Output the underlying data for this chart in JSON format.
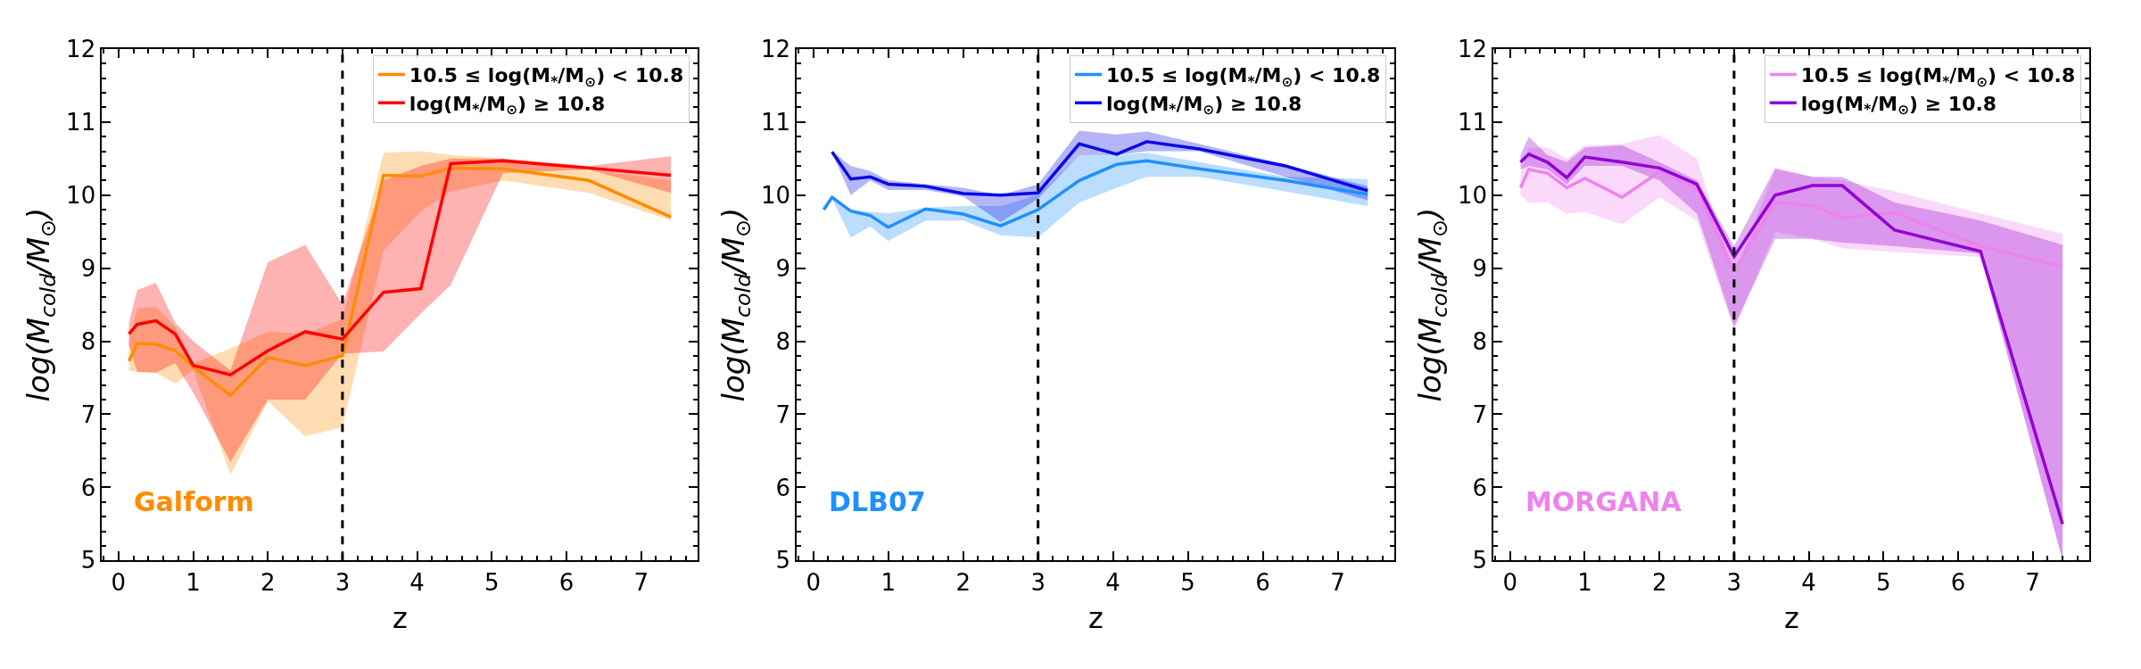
{
  "chart_data": [
    {
      "type": "line",
      "xlabel": "z",
      "ylabel": "log(M$_{cold}$/M$_{⊙}$)",
      "annotations": [
        "Galform"
      ],
      "x": [
        0.14,
        0.25,
        0.5,
        0.76,
        1.0,
        1.5,
        2.0,
        2.5,
        3.0,
        3.55,
        4.05,
        4.45,
        5.15,
        6.3,
        7.4
      ],
      "series": [
        {
          "name": "10.5 ≤ log(M$_{*}$/M$_{⊙}$) < 10.8",
          "color": "#ff8c00",
          "values": [
            7.73,
            7.97,
            7.96,
            7.87,
            7.65,
            7.26,
            7.78,
            7.67,
            7.8,
            10.27,
            10.26,
            10.37,
            10.36,
            10.2,
            9.7
          ],
          "upper": [
            8.0,
            8.45,
            8.47,
            8.2,
            7.7,
            7.9,
            8.13,
            8.1,
            8.3,
            10.58,
            10.6,
            10.55,
            10.5,
            10.35,
            10.2
          ],
          "lower": [
            7.6,
            7.58,
            7.57,
            7.42,
            7.6,
            6.17,
            7.18,
            6.7,
            6.82,
            9.24,
            9.78,
            10.05,
            10.2,
            10.03,
            9.65
          ]
        },
        {
          "name": "log(M$_{*}$/M$_{⊙}$) ≥ 10.8",
          "color": "#ff0000",
          "values": [
            8.1,
            8.23,
            8.28,
            8.1,
            7.67,
            7.54,
            7.87,
            8.13,
            8.03,
            8.67,
            8.72,
            10.43,
            10.47,
            10.37,
            10.27
          ],
          "upper": [
            8.25,
            8.7,
            8.8,
            8.25,
            8.0,
            7.6,
            9.08,
            9.32,
            8.5,
            10.2,
            10.4,
            10.5,
            10.5,
            10.4,
            10.53
          ],
          "lower": [
            7.95,
            7.58,
            7.57,
            7.7,
            7.3,
            6.35,
            7.2,
            7.2,
            7.83,
            7.86,
            8.38,
            8.77,
            10.3,
            10.35,
            10.03
          ]
        }
      ],
      "xlim": [
        -0.22,
        7.76
      ],
      "ylim": [
        5,
        12
      ],
      "xticks": [
        0,
        1,
        2,
        3,
        4,
        5,
        6,
        7
      ],
      "yticks": [
        5,
        6,
        7,
        8,
        9,
        10,
        11,
        12
      ],
      "ref_lines": [
        {
          "axis": "x",
          "value": 3,
          "label": null,
          "color": "#000000",
          "line_style": "dashed"
        }
      ],
      "legend": "top right"
    },
    {
      "type": "line",
      "xlabel": "z",
      "ylabel": "log(M$_{cold}$/M$_{⊙}$)",
      "annotations": [
        "DLB07"
      ],
      "x": [
        0.14,
        0.25,
        0.5,
        0.76,
        1.0,
        1.5,
        2.0,
        2.5,
        3.0,
        3.55,
        4.05,
        4.45,
        5.15,
        6.3,
        7.4
      ],
      "series": [
        {
          "name": "10.5 ≤ log(M$_{*}$/M$_{⊙}$) < 10.8",
          "color": "#1e90ff",
          "values": [
            9.8,
            9.97,
            9.78,
            9.72,
            9.56,
            9.81,
            9.74,
            9.58,
            9.8,
            10.2,
            10.42,
            10.47,
            10.36,
            10.2,
            10.01
          ],
          "upper": [
            9.85,
            9.97,
            9.8,
            9.77,
            9.75,
            9.83,
            9.85,
            9.85,
            10.0,
            10.55,
            10.55,
            10.58,
            10.45,
            10.25,
            10.22
          ],
          "lower": [
            9.78,
            9.95,
            9.42,
            9.57,
            9.37,
            9.65,
            9.65,
            9.45,
            9.42,
            9.9,
            10.1,
            10.25,
            10.25,
            10.05,
            9.85
          ]
        },
        {
          "name": "log(M$_{*}$/M$_{⊙}$) ≥ 10.8",
          "color": "#0a0ae6",
          "values": [
            null,
            10.59,
            10.22,
            10.25,
            10.15,
            10.12,
            10.02,
            10.0,
            10.03,
            10.7,
            10.56,
            10.73,
            10.63,
            10.4,
            10.06
          ],
          "upper": [
            null,
            10.6,
            10.4,
            10.33,
            10.2,
            10.15,
            10.1,
            10.0,
            10.15,
            10.88,
            10.83,
            10.87,
            10.7,
            10.42,
            10.12
          ],
          "lower": [
            null,
            10.58,
            10.0,
            10.2,
            10.07,
            10.07,
            9.98,
            9.63,
            9.95,
            10.55,
            10.55,
            10.6,
            10.6,
            10.25,
            9.93
          ]
        }
      ],
      "xlim": [
        -0.22,
        7.76
      ],
      "ylim": [
        5,
        12
      ],
      "xticks": [
        0,
        1,
        2,
        3,
        4,
        5,
        6,
        7
      ],
      "yticks": [
        5,
        6,
        7,
        8,
        9,
        10,
        11,
        12
      ],
      "ref_lines": [
        {
          "axis": "x",
          "value": 3,
          "label": null,
          "color": "#000000",
          "line_style": "dashed"
        }
      ],
      "legend": "top right"
    },
    {
      "type": "line",
      "xlabel": "z",
      "ylabel": "log(M$_{cold}$/M$_{⊙}$)",
      "annotations": [
        "MORGANA"
      ],
      "x": [
        0.14,
        0.25,
        0.5,
        0.76,
        1.0,
        1.5,
        2.0,
        2.5,
        3.0,
        3.55,
        4.05,
        4.45,
        5.15,
        6.3,
        7.4
      ],
      "series": [
        {
          "name": "10.5 ≤ log(M$_{*}$/M$_{⊙}$) < 10.8",
          "color": "#ee82ee",
          "values": [
            10.1,
            10.35,
            10.3,
            10.1,
            10.23,
            9.97,
            10.32,
            10.1,
            8.95,
            9.9,
            9.86,
            9.69,
            9.76,
            9.3,
            9.02
          ],
          "upper": [
            10.3,
            10.65,
            10.65,
            10.5,
            10.68,
            10.7,
            10.82,
            10.5,
            8.9,
            10.35,
            10.25,
            10.2,
            10.05,
            9.75,
            9.47
          ],
          "lower": [
            10.0,
            9.9,
            9.9,
            9.75,
            9.77,
            9.6,
            9.97,
            9.65,
            8.15,
            9.5,
            9.4,
            9.27,
            9.22,
            9.15,
            5.0
          ]
        },
        {
          "name": "log(M$_{*}$/M$_{⊙}$) ≥ 10.8",
          "color": "#9400d3",
          "values": [
            10.45,
            10.56,
            10.45,
            10.24,
            10.52,
            10.45,
            10.37,
            10.15,
            9.16,
            10.0,
            10.13,
            10.13,
            9.52,
            9.23,
            5.5
          ],
          "upper": [
            10.55,
            10.8,
            10.55,
            10.45,
            10.65,
            10.68,
            10.45,
            10.2,
            9.3,
            10.37,
            10.25,
            10.25,
            9.9,
            9.65,
            9.32
          ],
          "lower": [
            10.35,
            10.4,
            10.35,
            10.15,
            10.4,
            10.4,
            10.2,
            9.75,
            8.2,
            9.4,
            9.4,
            9.35,
            9.3,
            9.2,
            5.0
          ]
        }
      ],
      "xlim": [
        -0.22,
        7.76
      ],
      "ylim": [
        5,
        12
      ],
      "xticks": [
        0,
        1,
        2,
        3,
        4,
        5,
        6,
        7
      ],
      "yticks": [
        5,
        6,
        7,
        8,
        9,
        10,
        11,
        12
      ],
      "ref_lines": [
        {
          "axis": "x",
          "value": 3,
          "label": null,
          "color": "#000000",
          "line_style": "dashed"
        }
      ],
      "legend": "top right"
    }
  ]
}
